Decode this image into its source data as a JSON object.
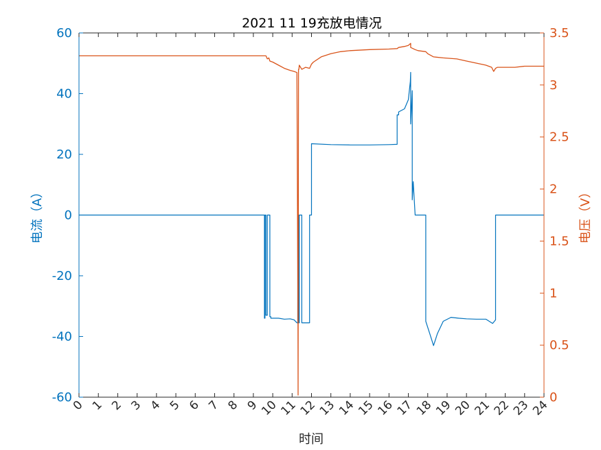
{
  "chart_data": {
    "type": "line",
    "title": "2021  11  19充放电情况",
    "xlabel": "时间",
    "ylabel_left": "电流（A）",
    "ylabel_right": "电压（V）",
    "xlim": [
      0,
      24
    ],
    "x_ticks": [
      0,
      1,
      2,
      3,
      4,
      5,
      6,
      7,
      8,
      9,
      10,
      11,
      12,
      13,
      14,
      15,
      16,
      17,
      18,
      19,
      20,
      21,
      22,
      23,
      24
    ],
    "ylim_left": [
      -60,
      60
    ],
    "y_ticks_left": [
      -60,
      -40,
      -20,
      0,
      20,
      40,
      60
    ],
    "ylim_right": [
      0,
      3.5
    ],
    "y_ticks_right": [
      "0",
      "0.5",
      "1",
      "1.5",
      "2",
      "2.5",
      "3",
      "3.5"
    ],
    "grid": false,
    "colors": {
      "current": "#0072BD",
      "voltage": "#D95319",
      "axis": "#262626"
    },
    "series": [
      {
        "axis": "left",
        "x": [
          0,
          9.57,
          9.57,
          9.6,
          9.6,
          9.65,
          9.65,
          9.72,
          9.72,
          9.85,
          9.85,
          9.9,
          9.9,
          10.0,
          10.3,
          10.6,
          10.9,
          11.1,
          11.25,
          11.29,
          11.29,
          11.33,
          11.33,
          11.37,
          11.37,
          11.5,
          11.5,
          11.9,
          11.9,
          12.0,
          12.0,
          13.0,
          14.0,
          15.0,
          16.0,
          16.42,
          16.42,
          16.5,
          16.5,
          16.8,
          17.0,
          17.1,
          17.12,
          17.12,
          17.2,
          17.2,
          17.25,
          17.35,
          17.35,
          17.9,
          17.9,
          18.1,
          18.3,
          18.5,
          18.8,
          19.2,
          19.6,
          20.0,
          20.5,
          21.0,
          21.3,
          21.35,
          21.5,
          21.5,
          24
        ],
        "y": [
          0,
          0,
          -34,
          -34,
          0,
          0,
          -33,
          -33,
          0,
          0,
          -33.5,
          -33.5,
          -34,
          -34,
          -34,
          -34.3,
          -34.2,
          -34.5,
          -35.5,
          -35.5,
          0,
          0,
          -35.5,
          -35.5,
          0,
          0,
          -35.5,
          -35.5,
          0,
          0,
          23.5,
          23.2,
          23.1,
          23.1,
          23.2,
          23.3,
          33,
          33,
          34,
          35,
          38,
          44,
          47,
          30,
          41,
          5,
          11,
          0,
          0,
          0,
          -35,
          -39,
          -43,
          -39,
          -35,
          -33.7,
          -34,
          -34.2,
          -34.3,
          -34.3,
          -35.5,
          -35.7,
          -34.5,
          0,
          0
        ]
      },
      {
        "axis": "right",
        "x": [
          0,
          9.65,
          9.72,
          9.8,
          9.85,
          10.0,
          10.3,
          10.6,
          10.9,
          11.1,
          11.25,
          11.3,
          11.31,
          11.33,
          11.35,
          11.37,
          11.5,
          11.7,
          11.9,
          12.0,
          12.1,
          12.5,
          13.0,
          13.5,
          14.0,
          15.0,
          16.0,
          16.42,
          16.5,
          16.8,
          17.0,
          17.12,
          17.12,
          17.35,
          17.5,
          17.9,
          18.0,
          18.3,
          18.8,
          19.5,
          20.0,
          20.5,
          21.0,
          21.3,
          21.4,
          21.5,
          21.6,
          22.0,
          22.5,
          23.0,
          24
        ],
        "y": [
          3.28,
          3.28,
          3.25,
          3.26,
          3.23,
          3.22,
          3.19,
          3.16,
          3.14,
          3.13,
          3.12,
          0.8,
          0.02,
          3.15,
          3.15,
          3.19,
          3.15,
          3.17,
          3.16,
          3.2,
          3.22,
          3.27,
          3.3,
          3.32,
          3.33,
          3.34,
          3.345,
          3.35,
          3.36,
          3.37,
          3.38,
          3.4,
          3.36,
          3.34,
          3.33,
          3.32,
          3.3,
          3.27,
          3.26,
          3.25,
          3.23,
          3.21,
          3.19,
          3.17,
          3.13,
          3.16,
          3.17,
          3.17,
          3.17,
          3.18,
          3.18
        ]
      }
    ]
  }
}
